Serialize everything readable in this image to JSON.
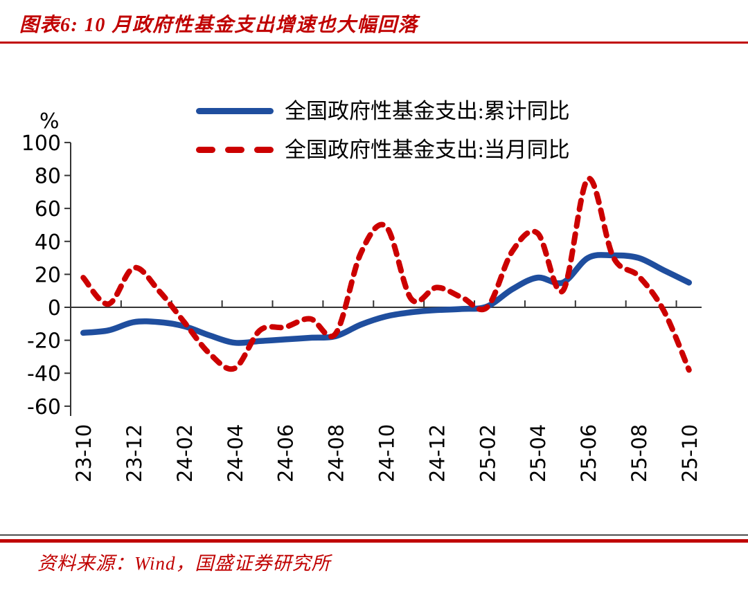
{
  "header": {
    "title": "图表6: 10 月政府性基金支出增速也大幅回落"
  },
  "source": {
    "label": "资料来源：Wind，国盛证券研究所"
  },
  "colors": {
    "accent_red": "#C00000",
    "line_blue": "#1F4E9E",
    "line_red": "#CC0000",
    "axis": "#333333",
    "text": "#000000"
  },
  "chart_data": {
    "type": "line",
    "title": "10月政府性基金支出增速也大幅回落",
    "unit_label": "%",
    "xlabel": "",
    "ylabel": "%",
    "ylim": [
      -60,
      100
    ],
    "y_ticks": [
      100,
      80,
      60,
      40,
      20,
      0,
      -20,
      -40,
      -60
    ],
    "grid": false,
    "legend_position": "top-center",
    "x": [
      "23-10",
      "23-11",
      "23-12",
      "24-01",
      "24-02",
      "24-03",
      "24-04",
      "24-05",
      "24-06",
      "24-07",
      "24-08",
      "24-09",
      "24-10",
      "24-11",
      "24-12",
      "25-01",
      "25-02",
      "25-03",
      "25-04",
      "25-05",
      "25-06",
      "25-07",
      "25-08",
      "25-09",
      "25-10"
    ],
    "x_tick_labels": [
      "23-10",
      "23-12",
      "24-02",
      "24-04",
      "24-06",
      "24-08",
      "24-10",
      "24-12",
      "25-02",
      "25-04",
      "25-06",
      "25-08",
      "25-10"
    ],
    "series": [
      {
        "name": "全国政府性基金支出:累计同比",
        "style": "solid",
        "color": "#1F4E9E",
        "values": [
          -15.5,
          -14,
          -9,
          -9,
          -11.5,
          -17,
          -21.5,
          -20.5,
          -19.5,
          -18.5,
          -17.5,
          -10.5,
          -5.5,
          -3,
          -1.7,
          -1,
          0.5,
          11,
          18,
          15,
          30,
          31.5,
          30,
          22.5,
          15
        ]
      },
      {
        "name": "全国政府性基金支出:当月同比",
        "style": "dashed",
        "color": "#CC0000",
        "values": [
          18,
          2,
          24,
          10,
          -9,
          -28,
          -37,
          -14,
          -12,
          -7,
          -16,
          33,
          49,
          5,
          12,
          6,
          0,
          34,
          45,
          10,
          78,
          30.5,
          19,
          -2,
          -38
        ]
      }
    ]
  }
}
